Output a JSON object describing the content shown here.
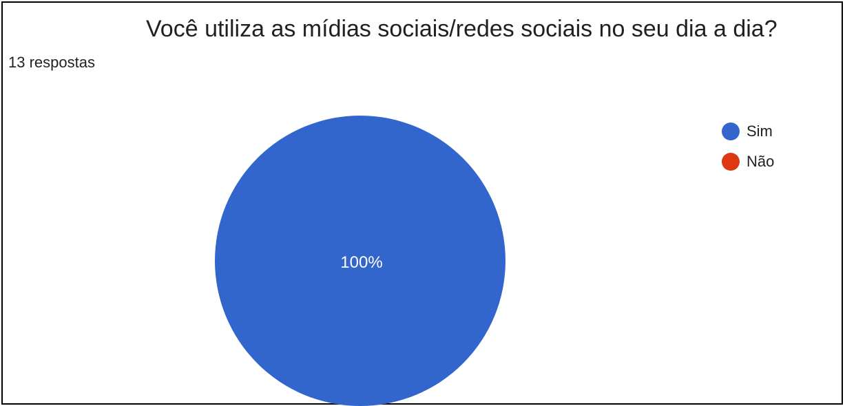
{
  "header": {
    "title": "Você utiliza as mídias sociais/redes sociais no seu dia a dia?",
    "responses": "13 respostas"
  },
  "colors": {
    "sim": "#3366cc",
    "nao": "#dc3912",
    "slice_label": "#ffffff"
  },
  "chart_data": {
    "type": "pie",
    "title": "Você utiliza as mídias sociais/redes sociais no seu dia a dia?",
    "categories": [
      "Sim",
      "Não"
    ],
    "values": [
      100,
      0
    ],
    "slice_labels": [
      "100%",
      ""
    ],
    "legend_position": "right"
  },
  "legend": [
    {
      "label": "Sim",
      "color": "#3366cc"
    },
    {
      "label": "Não",
      "color": "#dc3912"
    }
  ]
}
